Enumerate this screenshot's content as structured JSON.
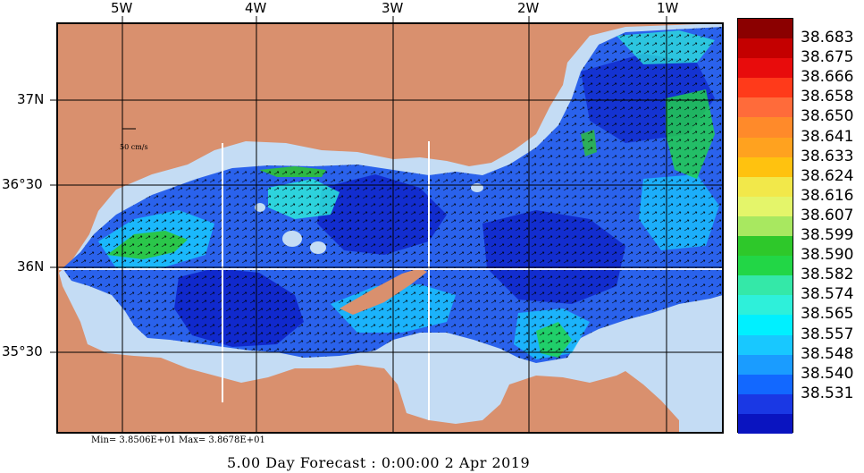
{
  "map": {
    "lon_labels": [
      "5W",
      "4W",
      "3W",
      "2W",
      "1W"
    ],
    "lat_labels": [
      "37N",
      "36°30",
      "36N",
      "35°30"
    ],
    "scale_label": "50 cm/s",
    "minmax_text": "Min= 3.8506E+01  Max= 3.8678E+01",
    "footer_text": "5.00 Day Forecast :  0:00:00   2 Apr 2019",
    "colors": {
      "land": "#d9906e",
      "shelf": "#c4dcf4",
      "grid": "#000000",
      "section": "#ffffff"
    }
  },
  "colorbar": {
    "labels": [
      "38.683",
      "38.675",
      "38.666",
      "38.658",
      "38.650",
      "38.641",
      "38.633",
      "38.624",
      "38.616",
      "38.607",
      "38.599",
      "38.590",
      "38.582",
      "38.574",
      "38.565",
      "38.557",
      "38.548",
      "38.540",
      "38.531"
    ],
    "colors": [
      "#8b0000",
      "#c40000",
      "#e80c0c",
      "#ff3a1a",
      "#ff6b3a",
      "#ff8a2a",
      "#ffa21f",
      "#ffc20f",
      "#f2e84a",
      "#e4f56a",
      "#a8e860",
      "#2ec82a",
      "#22d646",
      "#34e8a8",
      "#2ef0da",
      "#00f0ff",
      "#18c8ff",
      "#1a9cff",
      "#1268ff",
      "#1a38e4",
      "#0a14c0"
    ]
  }
}
